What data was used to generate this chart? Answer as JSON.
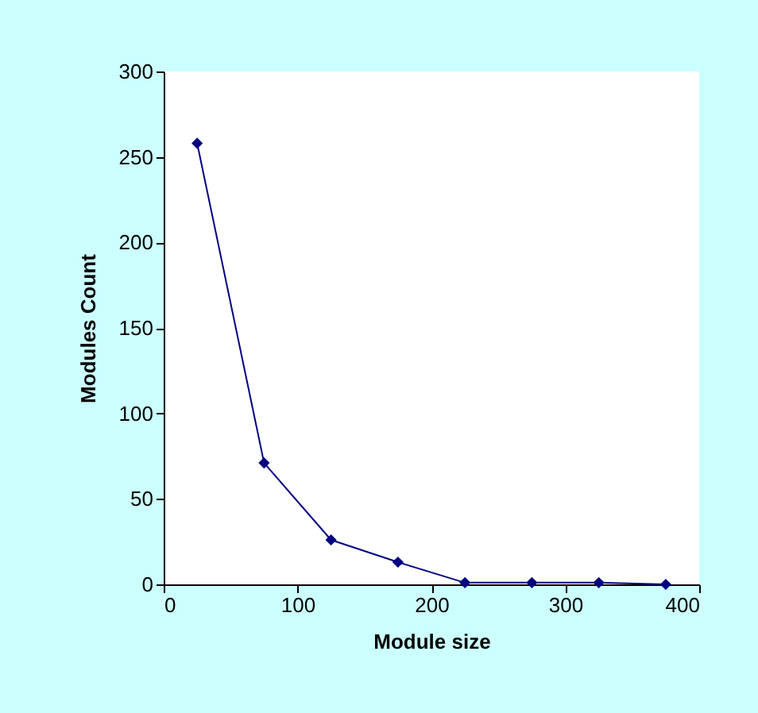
{
  "chart_data": {
    "type": "line",
    "xlabel": "Module size",
    "ylabel": "Modules Count",
    "x": [
      25,
      75,
      125,
      175,
      225,
      275,
      325,
      375
    ],
    "series": [
      {
        "color": "#000080",
        "values": [
          258,
          71,
          26,
          13,
          1,
          1,
          1,
          0
        ]
      }
    ],
    "xlim": [
      0,
      400
    ],
    "xticks": [
      0,
      100,
      200,
      300,
      400
    ],
    "ylim": [
      0,
      300
    ],
    "yticks": [
      0,
      50,
      100,
      150,
      200,
      250,
      300
    ],
    "grid": false,
    "marker": "diamond",
    "line_style": "solid"
  }
}
